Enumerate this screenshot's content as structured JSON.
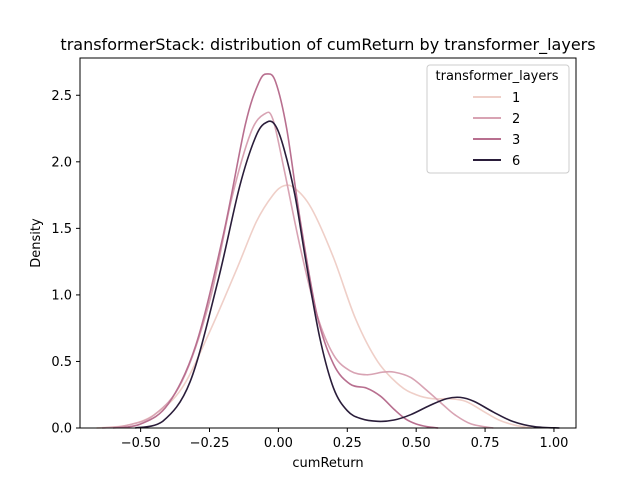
{
  "chart_data": {
    "type": "line",
    "title": "transformerStack: distribution of cumReturn by transformer_layers",
    "xlabel": "cumReturn",
    "ylabel": "Density",
    "xlim": [
      -0.72,
      1.08
    ],
    "ylim": [
      0,
      2.78
    ],
    "xticks": [
      -0.5,
      -0.25,
      0.0,
      0.25,
      0.5,
      0.75,
      1.0
    ],
    "xtick_labels": [
      "−0.50",
      "−0.25",
      "0.00",
      "0.25",
      "0.50",
      "0.75",
      "1.00"
    ],
    "yticks": [
      0.0,
      0.5,
      1.0,
      1.5,
      2.0,
      2.5
    ],
    "ytick_labels": [
      "0.0",
      "0.5",
      "1.0",
      "1.5",
      "2.0",
      "2.5"
    ],
    "grid": false,
    "legend": {
      "title": "transformer_layers",
      "placement": "top-right"
    },
    "series": [
      {
        "name": "1",
        "color": "#efcfc8",
        "x": [
          -0.66,
          -0.55,
          -0.45,
          -0.35,
          -0.25,
          -0.15,
          -0.08,
          -0.02,
          0.02,
          0.06,
          0.12,
          0.2,
          0.28,
          0.36,
          0.44,
          0.5,
          0.56,
          0.62,
          0.68,
          0.74,
          0.8,
          0.86,
          0.92
        ],
        "y": [
          0.0,
          0.02,
          0.1,
          0.3,
          0.72,
          1.2,
          1.55,
          1.75,
          1.82,
          1.8,
          1.65,
          1.28,
          0.82,
          0.5,
          0.32,
          0.25,
          0.22,
          0.22,
          0.2,
          0.13,
          0.06,
          0.02,
          0.0
        ]
      },
      {
        "name": "2",
        "color": "#d8a3b3",
        "x": [
          -0.64,
          -0.55,
          -0.45,
          -0.35,
          -0.25,
          -0.17,
          -0.1,
          -0.05,
          -0.02,
          0.02,
          0.08,
          0.14,
          0.2,
          0.26,
          0.32,
          0.38,
          0.42,
          0.48,
          0.54,
          0.6,
          0.64,
          0.7,
          0.78
        ],
        "y": [
          0.0,
          0.02,
          0.1,
          0.35,
          0.95,
          1.72,
          2.22,
          2.36,
          2.32,
          1.95,
          1.35,
          0.85,
          0.55,
          0.43,
          0.4,
          0.42,
          0.42,
          0.38,
          0.28,
          0.17,
          0.1,
          0.03,
          0.0
        ]
      },
      {
        "name": "3",
        "color": "#b86f8f",
        "x": [
          -0.6,
          -0.5,
          -0.4,
          -0.3,
          -0.2,
          -0.12,
          -0.07,
          -0.04,
          -0.01,
          0.03,
          0.08,
          0.14,
          0.2,
          0.26,
          0.32,
          0.37,
          0.42,
          0.46,
          0.5,
          0.54,
          0.58
        ],
        "y": [
          0.0,
          0.03,
          0.18,
          0.62,
          1.45,
          2.28,
          2.6,
          2.66,
          2.6,
          2.25,
          1.55,
          0.85,
          0.48,
          0.33,
          0.3,
          0.24,
          0.14,
          0.07,
          0.03,
          0.01,
          0.0
        ]
      },
      {
        "name": "6",
        "color": "#2a1d3a",
        "x": [
          -0.52,
          -0.42,
          -0.32,
          -0.22,
          -0.14,
          -0.08,
          -0.04,
          -0.01,
          0.02,
          0.06,
          0.1,
          0.15,
          0.2,
          0.25,
          0.3,
          0.36,
          0.42,
          0.48,
          0.55,
          0.61,
          0.66,
          0.71,
          0.78,
          0.85,
          0.93,
          1.02
        ],
        "y": [
          0.0,
          0.05,
          0.35,
          1.1,
          1.82,
          2.2,
          2.3,
          2.27,
          2.1,
          1.75,
          1.25,
          0.68,
          0.3,
          0.13,
          0.07,
          0.05,
          0.06,
          0.1,
          0.17,
          0.22,
          0.23,
          0.2,
          0.12,
          0.05,
          0.01,
          0.0
        ]
      }
    ]
  }
}
